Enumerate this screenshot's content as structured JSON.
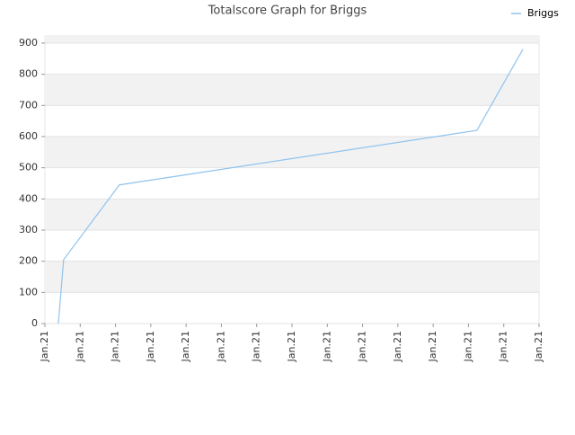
{
  "chart_data": {
    "type": "line",
    "title": "Totalscore Graph for Briggs",
    "x": [
      0.38,
      0.53,
      2.11,
      12.24,
      13.54
    ],
    "series": [
      {
        "name": "Briggs",
        "color": "#90c3ee",
        "values": [
          0,
          205,
          445,
          620,
          880
        ]
      }
    ],
    "xlim": [
      0,
      14
    ],
    "xticks": [
      {
        "value": 0,
        "label": "Jan.21"
      },
      {
        "value": 1,
        "label": "Jan.21"
      },
      {
        "value": 2,
        "label": "Jan.21"
      },
      {
        "value": 3,
        "label": "Jan.21"
      },
      {
        "value": 4,
        "label": "Jan.21"
      },
      {
        "value": 5,
        "label": "Jan.21"
      },
      {
        "value": 6,
        "label": "Jan.21"
      },
      {
        "value": 7,
        "label": "Jan.21"
      },
      {
        "value": 8,
        "label": "Jan.21"
      },
      {
        "value": 9,
        "label": "Jan.21"
      },
      {
        "value": 10,
        "label": "Jan.21"
      },
      {
        "value": 11,
        "label": "Jan.21"
      },
      {
        "value": 12,
        "label": "Jan.21"
      },
      {
        "value": 13,
        "label": "Jan.21"
      },
      {
        "value": 14,
        "label": "Jan.21"
      }
    ],
    "ylim": [
      0,
      923
    ],
    "yticks": [
      0,
      100,
      200,
      300,
      400,
      500,
      600,
      700,
      800,
      900
    ],
    "grid": true,
    "legend": "top-right"
  }
}
